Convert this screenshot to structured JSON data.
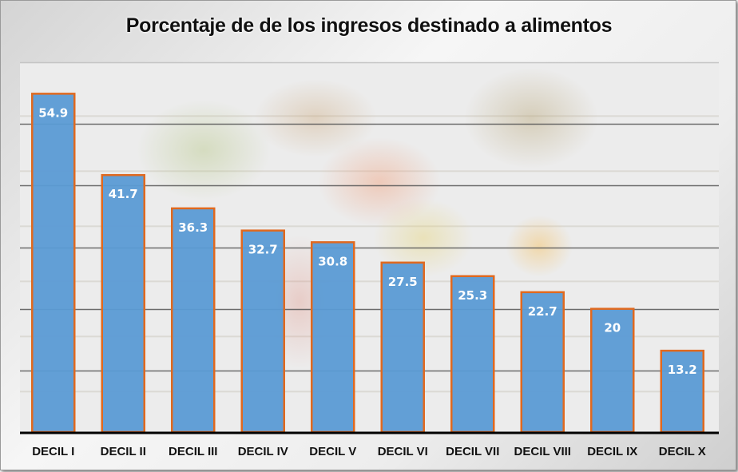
{
  "chart_data": {
    "type": "bar",
    "title": "Porcentaje de de los ingresos destinado a alimentos",
    "xlabel": "",
    "ylabel": "",
    "categories": [
      "DECIL I",
      "DECIL II",
      "DECIL III",
      "DECIL IV",
      "DECIL V",
      "DECIL VI",
      "DECIL VII",
      "DECIL VIII",
      "DECIL IX",
      "DECIL X"
    ],
    "values": [
      54.9,
      41.7,
      36.3,
      32.7,
      30.8,
      27.5,
      25.3,
      22.7,
      20,
      13.2
    ],
    "data_labels": [
      "54.9",
      "41.7",
      "36.3",
      "32.7",
      "30.8",
      "27.5",
      "25.3",
      "22.7",
      "20",
      "13.2"
    ],
    "ylim": [
      0,
      60
    ],
    "gridlines": [
      10,
      20,
      30,
      40,
      50,
      60
    ],
    "grid": true,
    "y_tick_labels_visible": false,
    "legend": "none",
    "colors": {
      "bar_fill": "#5b9bd5",
      "bar_border": "#e0691f",
      "label_text": "#ffffff",
      "gridline": "#555555",
      "axis": "#000000"
    }
  }
}
